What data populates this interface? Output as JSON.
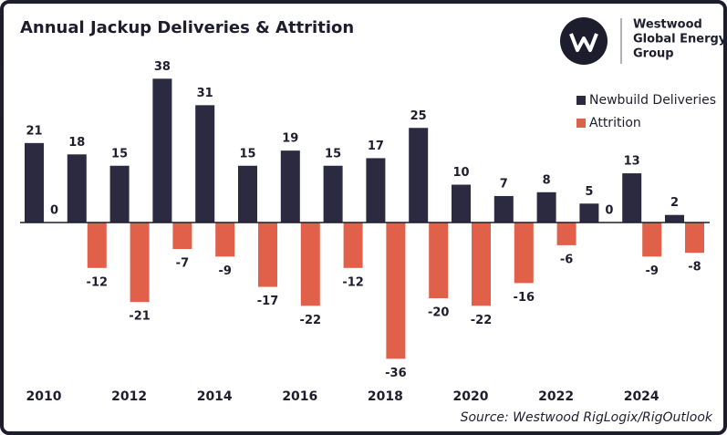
{
  "chart_data": {
    "type": "bar",
    "title": "Annual Jackup Deliveries & Attrition",
    "categories": [
      "2010",
      null,
      "2012",
      null,
      "2014",
      null,
      "2016",
      null,
      "2018",
      null,
      "2020",
      null,
      "2022",
      null,
      "2024",
      null
    ],
    "series": [
      {
        "name": "Newbuild Deliveries",
        "color": "#2b2a40",
        "values": [
          21,
          18,
          15,
          38,
          31,
          15,
          19,
          15,
          17,
          25,
          10,
          7,
          8,
          5,
          13,
          2
        ]
      },
      {
        "name": "Attrition",
        "color": "#e0604a",
        "values": [
          0,
          -12,
          -21,
          -7,
          -9,
          -17,
          -22,
          -12,
          -36,
          -20,
          -22,
          -16,
          -6,
          0,
          -9,
          -8
        ]
      }
    ],
    "ylim": [
      -40,
      40
    ],
    "legend": "upper-right",
    "source": "Source: Westwood RigLogix/RigOutlook"
  },
  "logo": {
    "lines": [
      "Westwood",
      "Global Energy",
      "Group"
    ]
  }
}
